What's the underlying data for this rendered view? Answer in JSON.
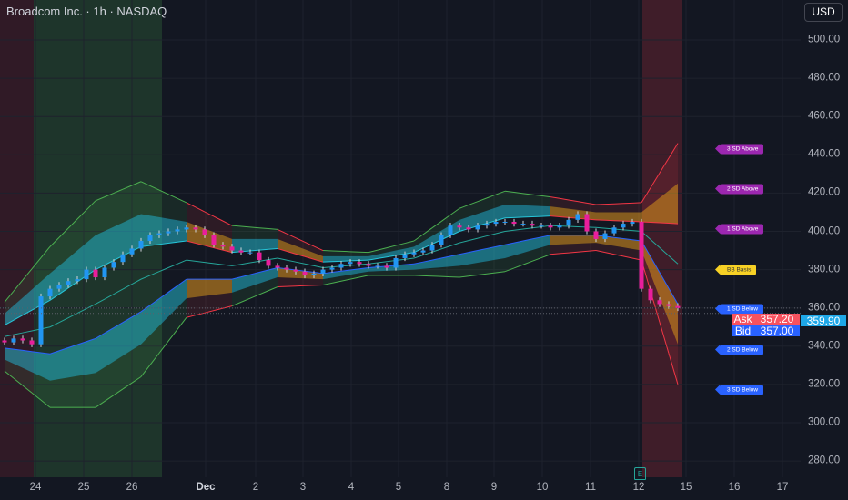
{
  "header": {
    "title": "Broadcom Inc. · 1h · NASDAQ",
    "currency_button": "USD"
  },
  "price_axis": {
    "ticks": [
      "500.00",
      "480.00",
      "460.00",
      "440.00",
      "420.00",
      "400.00",
      "380.00",
      "360.00",
      "340.00",
      "320.00",
      "300.00",
      "280.00"
    ]
  },
  "time_axis": {
    "ticks": [
      "24",
      "25",
      "26",
      "Dec",
      "2",
      "3",
      "4",
      "5",
      "8",
      "9",
      "10",
      "11",
      "12",
      "15",
      "16",
      "17"
    ]
  },
  "quotes": {
    "last": "359.90",
    "ask_label": "Ask",
    "ask": "357.20",
    "bid_label": "Bid",
    "bid": "357.00"
  },
  "band_labels": [
    {
      "text": "3 SD Above",
      "price": 443,
      "color": "#9c27b0"
    },
    {
      "text": "2 SD Above",
      "price": 422,
      "color": "#9c27b0"
    },
    {
      "text": "1 SD Above",
      "price": 401,
      "color": "#9c27b0"
    },
    {
      "text": "BB Basis",
      "price": 380,
      "color": "#f7d125"
    },
    {
      "text": "1 SD Below",
      "price": 359.5,
      "color": "#2962ff"
    },
    {
      "text": "2 SD Below",
      "price": 338,
      "color": "#2962ff"
    },
    {
      "text": "3 SD Below",
      "price": 317,
      "color": "#2962ff"
    }
  ],
  "earnings_marker": "E",
  "colors": {
    "background": "#131722",
    "up": "#2196f3",
    "down": "#e91e9c",
    "trend_up": "#26c6da",
    "trend_down": "#f7a21b",
    "outer_up": "#4caf50",
    "outer_down": "#f23645"
  },
  "chart_data": {
    "type": "candlestick",
    "ylim": [
      270,
      510
    ],
    "closes": [
      342,
      344,
      343,
      341,
      366,
      370,
      372,
      374,
      375,
      380,
      376,
      381,
      384,
      388,
      391,
      395,
      398,
      399,
      400,
      401,
      402,
      401,
      398,
      393,
      392,
      390,
      389,
      389,
      385,
      382,
      381,
      380,
      379,
      377,
      378,
      380,
      381,
      383,
      384,
      383,
      382,
      382,
      381,
      386,
      388,
      389,
      390,
      393,
      398,
      403,
      402,
      401,
      403,
      404,
      405,
      405,
      404,
      404,
      403,
      403,
      402,
      403,
      406,
      409,
      400,
      396,
      399,
      402,
      404,
      405,
      370,
      364,
      362,
      361,
      359.9
    ],
    "bollinger": [
      {
        "bar": 0,
        "basis": 345,
        "sd": 6
      },
      {
        "bar": 5,
        "basis": 350,
        "sd": 14
      },
      {
        "bar": 10,
        "basis": 362,
        "sd": 18
      },
      {
        "bar": 15,
        "basis": 375,
        "sd": 17
      },
      {
        "bar": 20,
        "basis": 385,
        "sd": 10
      },
      {
        "bar": 25,
        "basis": 382,
        "sd": 7
      },
      {
        "bar": 30,
        "basis": 386,
        "sd": 5
      },
      {
        "bar": 35,
        "basis": 381,
        "sd": 3
      },
      {
        "bar": 40,
        "basis": 383,
        "sd": 2
      },
      {
        "bar": 45,
        "basis": 386,
        "sd": 3
      },
      {
        "bar": 50,
        "basis": 394,
        "sd": 6
      },
      {
        "bar": 55,
        "basis": 400,
        "sd": 7
      },
      {
        "bar": 60,
        "basis": 403,
        "sd": 5
      },
      {
        "bar": 65,
        "basis": 402,
        "sd": 4
      },
      {
        "bar": 70,
        "basis": 400,
        "sd": 5
      },
      {
        "bar": 74,
        "basis": 383,
        "sd": 21
      }
    ]
  }
}
